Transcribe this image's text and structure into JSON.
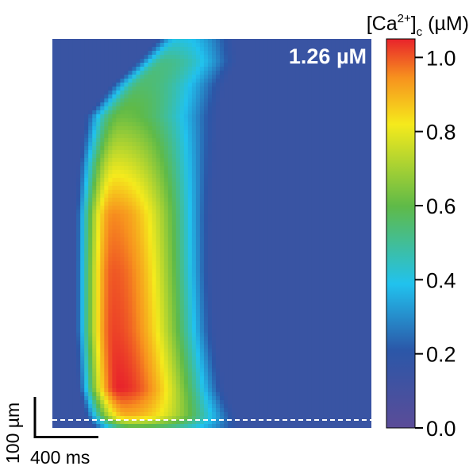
{
  "chart_data": {
    "type": "heatmap",
    "annotation": "1.26 µM",
    "colorbar": {
      "label_main": "[Ca",
      "label_sup": "2+",
      "label_close": "]",
      "label_sub": "c",
      "label_unit": " (µM)",
      "range": [
        0.0,
        1.05
      ],
      "ticks": [
        0.0,
        0.2,
        0.4,
        0.6,
        0.8,
        1.0
      ],
      "tick_labels": [
        "0.0",
        "0.2",
        "0.4",
        "0.6",
        "0.8",
        "1.0"
      ],
      "colors": [
        "#5b4c98",
        "#2b57a8",
        "#21c2ee",
        "#5fba48",
        "#f5ea1c",
        "#f7921e",
        "#e8232b"
      ],
      "color_stops": [
        0.0,
        0.2,
        0.37,
        0.57,
        0.78,
        0.9,
        1.0
      ]
    },
    "scale_bar": {
      "vertical_label": "100 µm",
      "horizontal_label": "400 ms"
    },
    "dashed_line": {
      "color": "#ffffff"
    },
    "background_level": 0.15,
    "profile_rows": [
      {
        "y": 0.0,
        "left": 0.33,
        "right": 0.57,
        "peak": 0.4
      },
      {
        "y": 0.06,
        "left": 0.26,
        "right": 0.58,
        "peak": 0.52
      },
      {
        "y": 0.12,
        "left": 0.18,
        "right": 0.54,
        "peak": 0.55
      },
      {
        "y": 0.2,
        "left": 0.1,
        "right": 0.52,
        "peak": 0.62
      },
      {
        "y": 0.32,
        "left": 0.08,
        "right": 0.51,
        "peak": 0.78
      },
      {
        "y": 0.45,
        "left": 0.07,
        "right": 0.5,
        "peak": 0.95
      },
      {
        "y": 0.6,
        "left": 0.07,
        "right": 0.5,
        "peak": 1.0
      },
      {
        "y": 0.75,
        "left": 0.07,
        "right": 0.51,
        "peak": 1.02
      },
      {
        "y": 0.9,
        "left": 0.08,
        "right": 0.54,
        "peak": 1.05
      },
      {
        "y": 0.97,
        "left": 0.1,
        "right": 0.58,
        "peak": 0.9
      },
      {
        "y": 1.0,
        "left": 0.12,
        "right": 0.6,
        "peak": 0.55
      }
    ]
  }
}
